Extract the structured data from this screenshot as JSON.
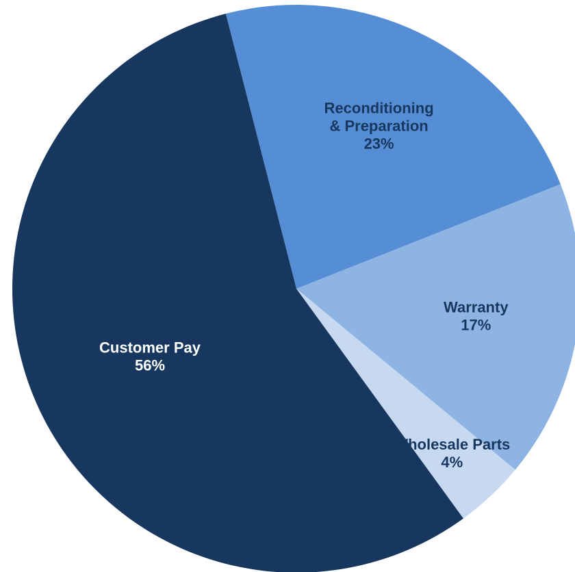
{
  "chart_data": {
    "type": "pie",
    "title": "",
    "start_angle_deg": 255.6,
    "direction": "clockwise",
    "slices": [
      {
        "name": "Reconditioning & Preparation",
        "label_lines": [
          "Reconditioning",
          "& Preparation"
        ],
        "value": 23,
        "value_label": "23%",
        "color": "#558ed5",
        "label_color": "#17375e"
      },
      {
        "name": "Warranty",
        "label_lines": [
          "Warranty"
        ],
        "value": 17,
        "value_label": "17%",
        "color": "#8eb4e3",
        "label_color": "#17375e"
      },
      {
        "name": "Wholesale Parts",
        "label_lines": [
          "Wholesale Parts"
        ],
        "value": 4,
        "value_label": "4%",
        "color": "#c6d9f1",
        "label_color": "#17375e"
      },
      {
        "name": "Customer Pay",
        "label_lines": [
          "Customer Pay"
        ],
        "value": 56,
        "value_label": "56%",
        "color": "#17375e",
        "label_color": "#ffffff"
      }
    ]
  }
}
